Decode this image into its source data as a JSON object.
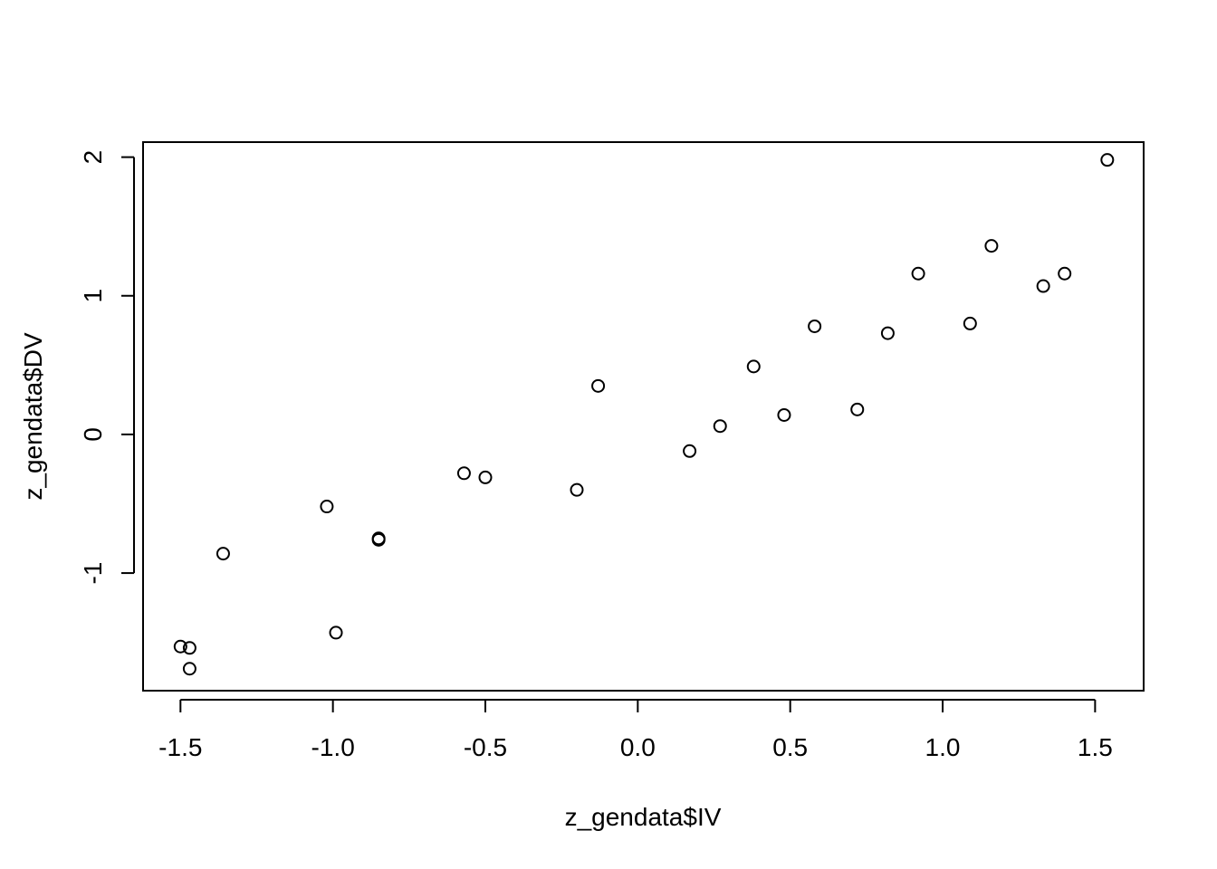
{
  "chart_data": {
    "type": "scatter",
    "title": "",
    "xlabel": "z_gendata$IV",
    "ylabel": "z_gendata$DV",
    "xlim": [
      -1.6227,
      1.6593
    ],
    "ylim": [
      -1.8483,
      2.1084
    ],
    "x_ticks": [
      -1.5,
      -1.0,
      -0.5,
      0.0,
      0.5,
      1.0,
      1.5
    ],
    "x_tick_labels": [
      "-1.5",
      "-1.0",
      "-0.5",
      "0.0",
      "0.5",
      "1.0",
      "1.5"
    ],
    "y_ticks": [
      -1,
      0,
      1,
      2
    ],
    "y_tick_labels": [
      "-1",
      "0",
      "1",
      "2"
    ],
    "grid": false,
    "legend": "none",
    "marker": "open-circle",
    "colors": {
      "axis": "#000000",
      "points": "#000000",
      "background": "#ffffff"
    },
    "x": [
      -1.5,
      -1.47,
      -1.47,
      -1.36,
      -1.02,
      -0.99,
      -0.85,
      -0.85,
      -0.57,
      -0.5,
      -0.2,
      -0.13,
      0.17,
      0.27,
      0.38,
      0.48,
      0.58,
      0.72,
      0.82,
      0.92,
      1.09,
      1.16,
      1.33,
      1.4,
      1.54
    ],
    "y": [
      -1.53,
      -1.54,
      -1.69,
      -0.86,
      -0.52,
      -1.43,
      -0.75,
      -0.76,
      -0.28,
      -0.31,
      -0.4,
      0.35,
      -0.12,
      0.06,
      0.49,
      0.14,
      0.78,
      0.18,
      0.73,
      1.16,
      0.8,
      1.36,
      1.07,
      1.16,
      1.98
    ]
  }
}
